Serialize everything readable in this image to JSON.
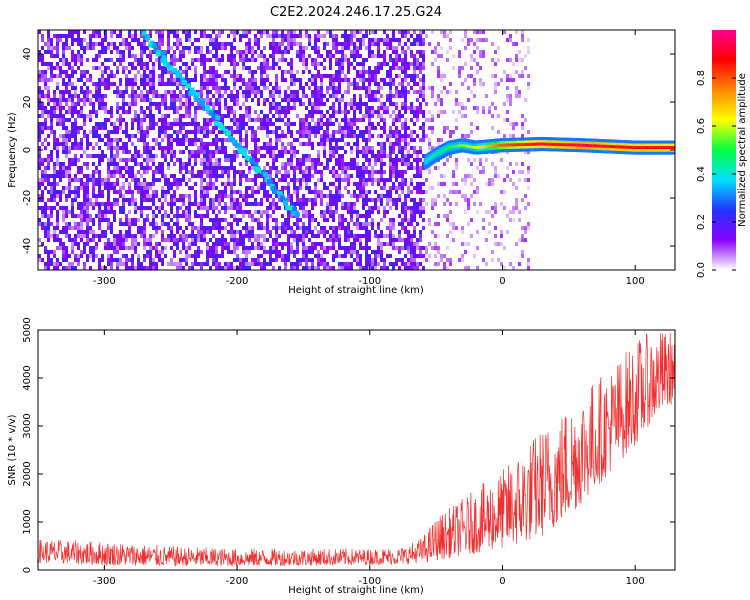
{
  "title": "C2E2.2024.246.17.25.G24",
  "chart_data": [
    {
      "type": "heatmap",
      "xlabel": "Height of straight line (km)",
      "ylabel": "Frequency (Hz)",
      "xlim": [
        -350,
        130
      ],
      "ylim": [
        -50,
        50
      ],
      "xticks": [
        -300,
        -200,
        -100,
        0,
        100
      ],
      "yticks": [
        -40,
        -20,
        0,
        20,
        40
      ],
      "colorbar": {
        "label": "Normalized spectral amplitude",
        "range": [
          0,
          1
        ],
        "ticks": [
          0.0,
          0.2,
          0.4,
          0.6,
          0.8
        ],
        "tick_labels": [
          "0.0",
          "0.2",
          "0.4",
          "0.6",
          "0.8"
        ],
        "colormap": [
          "#ffffff",
          "#8800ff",
          "#2233ff",
          "#00e0ff",
          "#00ff40",
          "#ffff00",
          "#ff8800",
          "#ff0000",
          "#ff0090"
        ]
      },
      "features": [
        {
          "kind": "noise-field",
          "x": [
            -350,
            -60
          ],
          "y": [
            -50,
            50
          ],
          "level": 0.12
        },
        {
          "kind": "sparse-noise",
          "x": [
            -60,
            20
          ],
          "y": [
            -50,
            50
          ],
          "level": 0.04
        },
        {
          "kind": "descending-streak",
          "x": [
            -270,
            -155
          ],
          "y": [
            48,
            -27
          ],
          "level": 0.3
        },
        {
          "kind": "signal-trace",
          "points": [
            [
              -58,
              -5
            ],
            [
              -50,
              -2
            ],
            [
              -40,
              1
            ],
            [
              -30,
              2
            ],
            [
              -20,
              1
            ],
            [
              -10,
              1.5
            ],
            [
              0,
              2
            ],
            [
              30,
              2.5
            ],
            [
              60,
              2
            ],
            [
              100,
              1
            ],
            [
              130,
              1
            ]
          ],
          "levels": [
            0.35,
            0.45,
            0.5,
            0.55,
            0.6,
            0.7,
            0.8,
            0.9,
            0.95,
            0.9,
            0.88
          ]
        }
      ]
    },
    {
      "type": "line",
      "xlabel": "Height of straight line (km)",
      "ylabel": "SNR (10 * v/v)",
      "xlim": [
        -350,
        130
      ],
      "ylim": [
        0,
        5000
      ],
      "xticks": [
        -300,
        -200,
        -100,
        0,
        100
      ],
      "yticks": [
        0,
        1000,
        2000,
        3000,
        4000,
        5000
      ],
      "color": "#f03030",
      "envelope_x": [
        -350,
        -300,
        -250,
        -200,
        -150,
        -100,
        -75,
        -60,
        -50,
        -40,
        -30,
        -20,
        -10,
        0,
        10,
        20,
        30,
        40,
        50,
        60,
        70,
        80,
        90,
        100,
        110,
        120,
        130
      ],
      "envelope_low": [
        150,
        100,
        80,
        80,
        90,
        110,
        120,
        150,
        200,
        250,
        300,
        350,
        400,
        450,
        500,
        600,
        700,
        900,
        1100,
        1400,
        1700,
        2000,
        2300,
        2600,
        3000,
        3300,
        3500
      ],
      "envelope_high": [
        650,
        600,
        500,
        450,
        450,
        450,
        480,
        700,
        1100,
        1300,
        1500,
        1700,
        1900,
        2100,
        2400,
        2700,
        3000,
        3200,
        3500,
        3800,
        4000,
        4200,
        4500,
        4800,
        4950,
        5000,
        5000
      ]
    }
  ]
}
